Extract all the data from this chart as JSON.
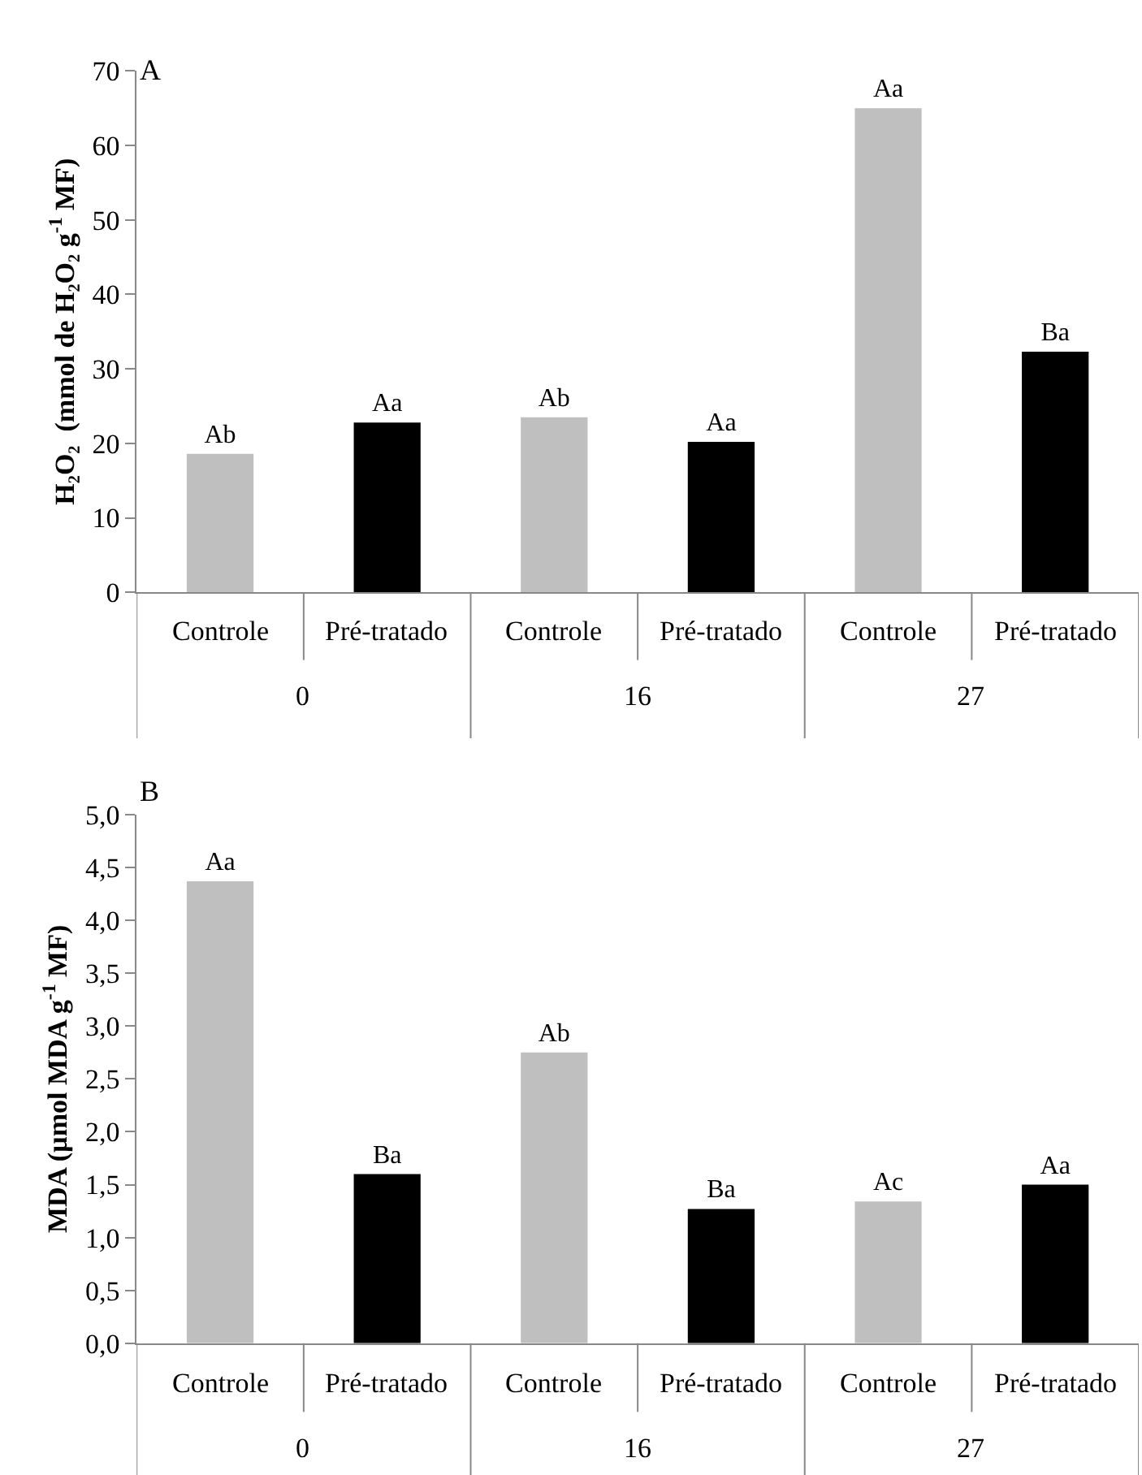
{
  "chart_data": [
    {
      "type": "bar",
      "title": "A",
      "ylabel": "H₂O₂  (mmol de H₂O₂ g$^{-1}$ MF)",
      "categories": [
        "Controle",
        "Pré-tratado",
        "Controle",
        "Pré-tratado",
        "Controle",
        "Pré-tratado"
      ],
      "values": [
        18.6,
        22.8,
        23.5,
        20.2,
        65.0,
        32.3
      ],
      "colors": [
        "#bfbfbf",
        "#000000",
        "#bfbfbf",
        "#000000",
        "#bfbfbf",
        "#000000"
      ],
      "value_labels": [
        "Ab",
        "Aa",
        "Ab",
        "Aa",
        "Aa",
        "Ba"
      ],
      "ylim": [
        0,
        70
      ],
      "yticks": [
        0,
        10,
        20,
        30,
        40,
        50,
        60,
        70
      ],
      "annotations": [
        "0",
        "16",
        "27"
      ]
    },
    {
      "type": "bar",
      "title": "B",
      "ylabel": "MDA (µmol MDA g$^{-1}$ MF)",
      "categories": [
        "Controle",
        "Pré-tratado",
        "Controle",
        "Pré-tratado",
        "Controle",
        "Pré-tratado"
      ],
      "values": [
        4.37,
        1.6,
        2.75,
        1.27,
        1.34,
        1.5
      ],
      "colors": [
        "#bfbfbf",
        "#000000",
        "#bfbfbf",
        "#000000",
        "#bfbfbf",
        "#000000"
      ],
      "value_labels": [
        "Aa",
        "Ba",
        "Ab",
        "Ba",
        "Ac",
        "Aa"
      ],
      "ylim": [
        0,
        5.0
      ],
      "yticks": [
        {
          "value": 0,
          "label": "0,0"
        },
        {
          "value": 0.5,
          "label": "0,5"
        },
        {
          "value": 1.0,
          "label": "1,0"
        },
        {
          "value": 1.5,
          "label": "1,5"
        },
        {
          "value": 2.0,
          "label": "2,0"
        },
        {
          "value": 2.5,
          "label": "2,5"
        },
        {
          "value": 3.0,
          "label": "3,0"
        },
        {
          "value": 3.5,
          "label": "3,5"
        },
        {
          "value": 4.0,
          "label": "4,0"
        },
        {
          "value": 4.5,
          "label": "4,5"
        },
        {
          "value": 5.0,
          "label": "5,0"
        }
      ],
      "annotations": [
        "0",
        "16",
        "27"
      ]
    }
  ]
}
